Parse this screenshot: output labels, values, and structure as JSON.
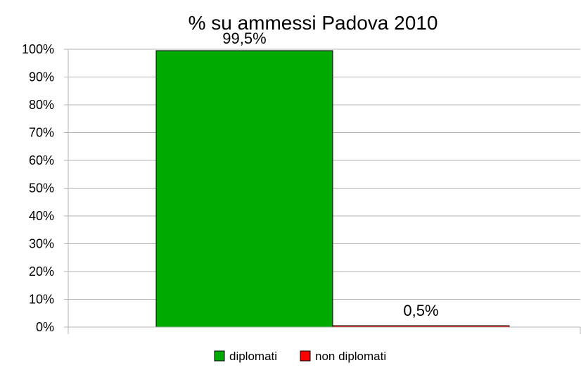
{
  "chart_data": {
    "type": "bar",
    "title": "% su ammessi Padova 2010",
    "xlabel": "",
    "ylabel": "",
    "ylim": [
      0,
      100
    ],
    "ytick_labels": [
      "0%",
      "10%",
      "20%",
      "30%",
      "40%",
      "50%",
      "60%",
      "70%",
      "80%",
      "90%",
      "100%"
    ],
    "ytick_values": [
      0,
      10,
      20,
      30,
      40,
      50,
      60,
      70,
      80,
      90,
      100
    ],
    "grid": true,
    "legend_position": "bottom",
    "series": [
      {
        "name": "diplomati",
        "values": [
          99.5
        ],
        "label": "99,5%",
        "color": "#00aa00"
      },
      {
        "name": "non diplomati",
        "values": [
          0.5
        ],
        "label": "0,5%",
        "color": "#ff0000"
      }
    ]
  }
}
